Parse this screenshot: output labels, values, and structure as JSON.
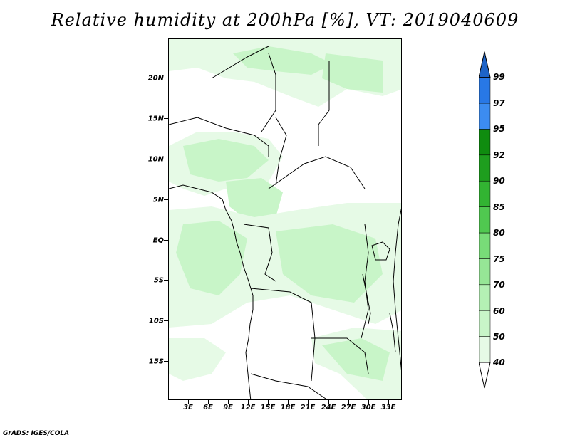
{
  "title": "Relative humidity at 200hPa [%], VT: 2019040609",
  "credit": "GrADS: IGES/COLA",
  "map": {
    "variable": "Relative humidity at 200hPa [%]",
    "valid_time": "2019040609",
    "lat_labels": [
      "20N",
      "15N",
      "10N",
      "5N",
      "EQ",
      "5S",
      "10S",
      "15S"
    ],
    "lon_labels": [
      "3E",
      "6E",
      "9E",
      "12E",
      "15E",
      "18E",
      "21E",
      "24E",
      "27E",
      "30E",
      "33E"
    ]
  },
  "colorbar": {
    "levels": [
      "40",
      "50",
      "60",
      "70",
      "75",
      "80",
      "85",
      "90",
      "92",
      "95",
      "97",
      "99"
    ],
    "colors": [
      "#ffffff",
      "#e6fae6",
      "#c8f5c8",
      "#b4f0b4",
      "#96e696",
      "#78dc78",
      "#50c850",
      "#32b432",
      "#1e9e1e",
      "#0f8c0f",
      "#3c8cf0",
      "#2878e6",
      "#1e64c8"
    ]
  }
}
